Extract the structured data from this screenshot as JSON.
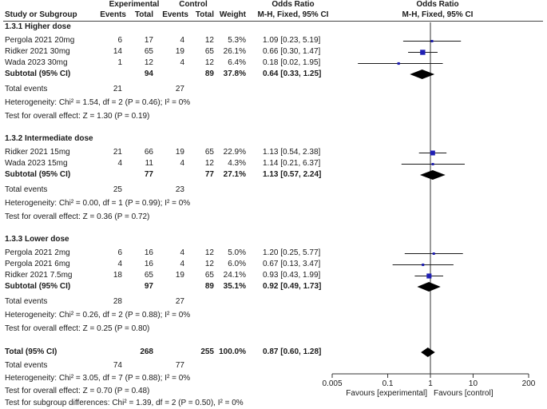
{
  "header": {
    "experimental": "Experimental",
    "control": "Control",
    "odds_ratio": "Odds Ratio",
    "odds_ratio_plot": "Odds Ratio",
    "study": "Study or Subgroup",
    "events": "Events",
    "total": "Total",
    "events2": "Events",
    "total2": "Total",
    "weight": "Weight",
    "method": "M-H, Fixed, 95% CI",
    "method_plot": "M-H, Fixed, 95% CI"
  },
  "groups": [
    {
      "title": "1.3.1 Higher dose",
      "studies": [
        {
          "name": "Pergola 2021 20mg",
          "e_events": "6",
          "e_total": "17",
          "c_events": "4",
          "c_total": "12",
          "weight": "5.3%",
          "ci_text": "1.09 [0.23, 5.19]"
        },
        {
          "name": "Ridker 2021 30mg",
          "e_events": "14",
          "e_total": "65",
          "c_events": "19",
          "c_total": "65",
          "weight": "26.1%",
          "ci_text": "0.66 [0.30, 1.47]"
        },
        {
          "name": "Wada 2023 30mg",
          "e_events": "1",
          "e_total": "12",
          "c_events": "4",
          "c_total": "12",
          "weight": "6.4%",
          "ci_text": "0.18 [0.02, 1.95]"
        }
      ],
      "subtotal": {
        "label": "Subtotal (95% CI)",
        "e_total": "94",
        "c_total": "89",
        "weight": "37.8%",
        "ci_text": "0.64 [0.33, 1.25]"
      },
      "total_events": {
        "label": "Total events",
        "e": "21",
        "c": "27"
      },
      "heterogeneity": "Heterogeneity: Chi² = 1.54, df = 2 (P = 0.46); I² = 0%",
      "effect": "Test for overall effect: Z = 1.30 (P = 0.19)"
    },
    {
      "title": "1.3.2 Intermediate dose",
      "studies": [
        {
          "name": "Ridker 2021 15mg",
          "e_events": "21",
          "e_total": "66",
          "c_events": "19",
          "c_total": "65",
          "weight": "22.9%",
          "ci_text": "1.13 [0.54, 2.38]"
        },
        {
          "name": "Wada 2023 15mg",
          "e_events": "4",
          "e_total": "11",
          "c_events": "4",
          "c_total": "12",
          "weight": "4.3%",
          "ci_text": "1.14 [0.21, 6.37]"
        }
      ],
      "subtotal": {
        "label": "Subtotal (95% CI)",
        "e_total": "77",
        "c_total": "77",
        "weight": "27.1%",
        "ci_text": "1.13 [0.57, 2.24]"
      },
      "total_events": {
        "label": "Total events",
        "e": "25",
        "c": "23"
      },
      "heterogeneity": "Heterogeneity: Chi² = 0.00, df = 1 (P = 0.99); I² = 0%",
      "effect": "Test for overall effect: Z = 0.36 (P = 0.72)"
    },
    {
      "title": "1.3.3 Lower dose",
      "studies": [
        {
          "name": "Pergola 2021 2mg",
          "e_events": "6",
          "e_total": "16",
          "c_events": "4",
          "c_total": "12",
          "weight": "5.0%",
          "ci_text": "1.20 [0.25, 5.77]"
        },
        {
          "name": "Pergola 2021 6mg",
          "e_events": "4",
          "e_total": "16",
          "c_events": "4",
          "c_total": "12",
          "weight": "6.0%",
          "ci_text": "0.67 [0.13, 3.47]"
        },
        {
          "name": "Ridker 2021 7.5mg",
          "e_events": "18",
          "e_total": "65",
          "c_events": "19",
          "c_total": "65",
          "weight": "24.1%",
          "ci_text": "0.93 [0.43, 1.99]"
        }
      ],
      "subtotal": {
        "label": "Subtotal (95% CI)",
        "e_total": "97",
        "c_total": "89",
        "weight": "35.1%",
        "ci_text": "0.92 [0.49, 1.73]"
      },
      "total_events": {
        "label": "Total events",
        "e": "28",
        "c": "27"
      },
      "heterogeneity": "Heterogeneity: Chi² = 0.26, df = 2 (P = 0.88); I² = 0%",
      "effect": "Test for overall effect: Z = 0.25 (P = 0.80)"
    }
  ],
  "total": {
    "label": "Total (95% CI)",
    "e_total": "268",
    "c_total": "255",
    "weight": "100.0%",
    "ci_text": "0.87 [0.60, 1.28]",
    "events_label": "Total events",
    "e_events": "74",
    "c_events": "77",
    "heterogeneity": "Heterogeneity: Chi² = 3.05, df = 7 (P = 0.88); I² = 0%",
    "effect": "Test for overall effect: Z = 0.70 (P = 0.48)",
    "subgroup": "Test for subgroup differences: Chi² = 1.39, df = 2 (P = 0.50), I² = 0%"
  },
  "chart_data": {
    "type": "forest",
    "scale": "log",
    "xlim": [
      0.005,
      200
    ],
    "ticks": [
      0.005,
      0.1,
      1,
      10,
      200
    ],
    "tick_labels": [
      "0.005",
      "0.1",
      "1",
      "10",
      "200"
    ],
    "favours_left": "Favours [experimental]",
    "favours_right": "Favours [control]",
    "studies": [
      {
        "name": "Pergola 2021 20mg",
        "or": 1.09,
        "lo": 0.23,
        "hi": 5.19,
        "weight": 5.3
      },
      {
        "name": "Ridker 2021 30mg",
        "or": 0.66,
        "lo": 0.3,
        "hi": 1.47,
        "weight": 26.1
      },
      {
        "name": "Wada 2023 30mg",
        "or": 0.18,
        "lo": 0.02,
        "hi": 1.95,
        "weight": 6.4
      },
      {
        "name": "Ridker 2021 15mg",
        "or": 1.13,
        "lo": 0.54,
        "hi": 2.38,
        "weight": 22.9
      },
      {
        "name": "Wada 2023 15mg",
        "or": 1.14,
        "lo": 0.21,
        "hi": 6.37,
        "weight": 4.3
      },
      {
        "name": "Pergola 2021 2mg",
        "or": 1.2,
        "lo": 0.25,
        "hi": 5.77,
        "weight": 5.0
      },
      {
        "name": "Pergola 2021 6mg",
        "or": 0.67,
        "lo": 0.13,
        "hi": 3.47,
        "weight": 6.0
      },
      {
        "name": "Ridker 2021 7.5mg",
        "or": 0.93,
        "lo": 0.43,
        "hi": 1.99,
        "weight": 24.1
      }
    ],
    "diamonds": [
      {
        "name": "Subtotal 1.3.1",
        "or": 0.64,
        "lo": 0.33,
        "hi": 1.25
      },
      {
        "name": "Subtotal 1.3.2",
        "or": 1.13,
        "lo": 0.57,
        "hi": 2.24
      },
      {
        "name": "Subtotal 1.3.3",
        "or": 0.92,
        "lo": 0.49,
        "hi": 1.73
      },
      {
        "name": "Total",
        "or": 0.87,
        "lo": 0.6,
        "hi": 1.28
      }
    ]
  }
}
